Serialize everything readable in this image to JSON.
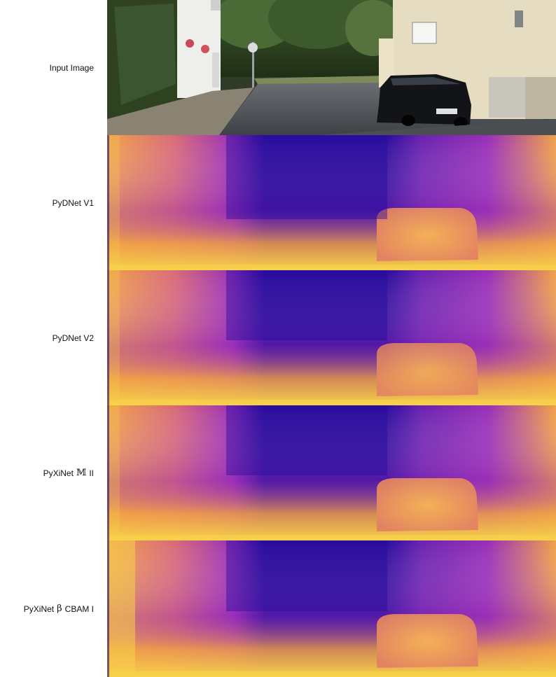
{
  "figure": {
    "rows": [
      {
        "label": "Input Image",
        "kind": "photo"
      },
      {
        "label": "PyDNet V1",
        "kind": "depth"
      },
      {
        "label": "PyDNet V2",
        "kind": "depth"
      },
      {
        "label_prefix": "PyXiNet",
        "label_symbol": "𝕄",
        "label_suffix": "II",
        "kind": "depth"
      },
      {
        "label_prefix": "PyXiNet",
        "label_symbol": "β",
        "label_suffix": "CBAM I",
        "kind": "depth"
      }
    ]
  },
  "colors": {
    "depth_far": "#2a0c9e",
    "depth_mid": "#9a2fb8",
    "depth_near": "#f0a048",
    "depth_nearest": "#f7d24a"
  }
}
